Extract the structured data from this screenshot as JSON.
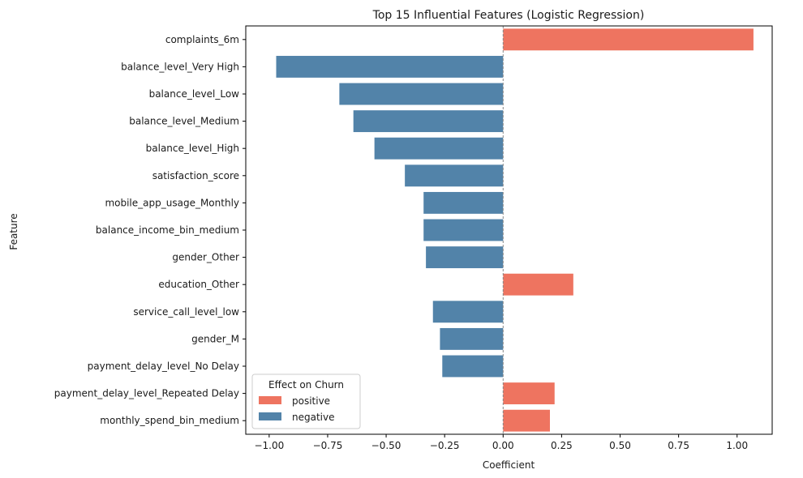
{
  "chart_data": {
    "type": "bar",
    "orientation": "horizontal",
    "title": "Top 15 Influential Features (Logistic Regression)",
    "xlabel": "Coefficient",
    "ylabel": "Feature",
    "xlim": [
      -1.1,
      1.15
    ],
    "xticks": [
      -1.0,
      -0.75,
      -0.5,
      -0.25,
      0.0,
      0.25,
      0.5,
      0.75,
      1.0
    ],
    "xtick_labels": [
      "−1.00",
      "−0.75",
      "−0.50",
      "−0.25",
      "0.00",
      "0.25",
      "0.50",
      "0.75",
      "1.00"
    ],
    "grid": false,
    "zero_line": true,
    "categories": [
      "complaints_6m",
      "balance_level_Very High",
      "balance_level_Low",
      "balance_level_Medium",
      "balance_level_High",
      "satisfaction_score",
      "mobile_app_usage_Monthly",
      "balance_income_bin_medium",
      "gender_Other",
      "education_Other",
      "service_call_level_low",
      "gender_M",
      "payment_delay_level_No Delay",
      "payment_delay_level_Repeated Delay",
      "monthly_spend_bin_medium"
    ],
    "values": [
      1.07,
      -0.97,
      -0.7,
      -0.64,
      -0.55,
      -0.42,
      -0.34,
      -0.34,
      -0.33,
      0.3,
      -0.3,
      -0.27,
      -0.26,
      0.22,
      0.2
    ],
    "effects": [
      "positive",
      "negative",
      "negative",
      "negative",
      "negative",
      "negative",
      "negative",
      "negative",
      "negative",
      "positive",
      "negative",
      "negative",
      "negative",
      "positive",
      "positive"
    ],
    "colors": {
      "positive": "#ee7460",
      "negative": "#5283a9"
    },
    "legend": {
      "title": "Effect on Churn",
      "placement": "lower-left",
      "entries": [
        "positive",
        "negative"
      ]
    }
  }
}
